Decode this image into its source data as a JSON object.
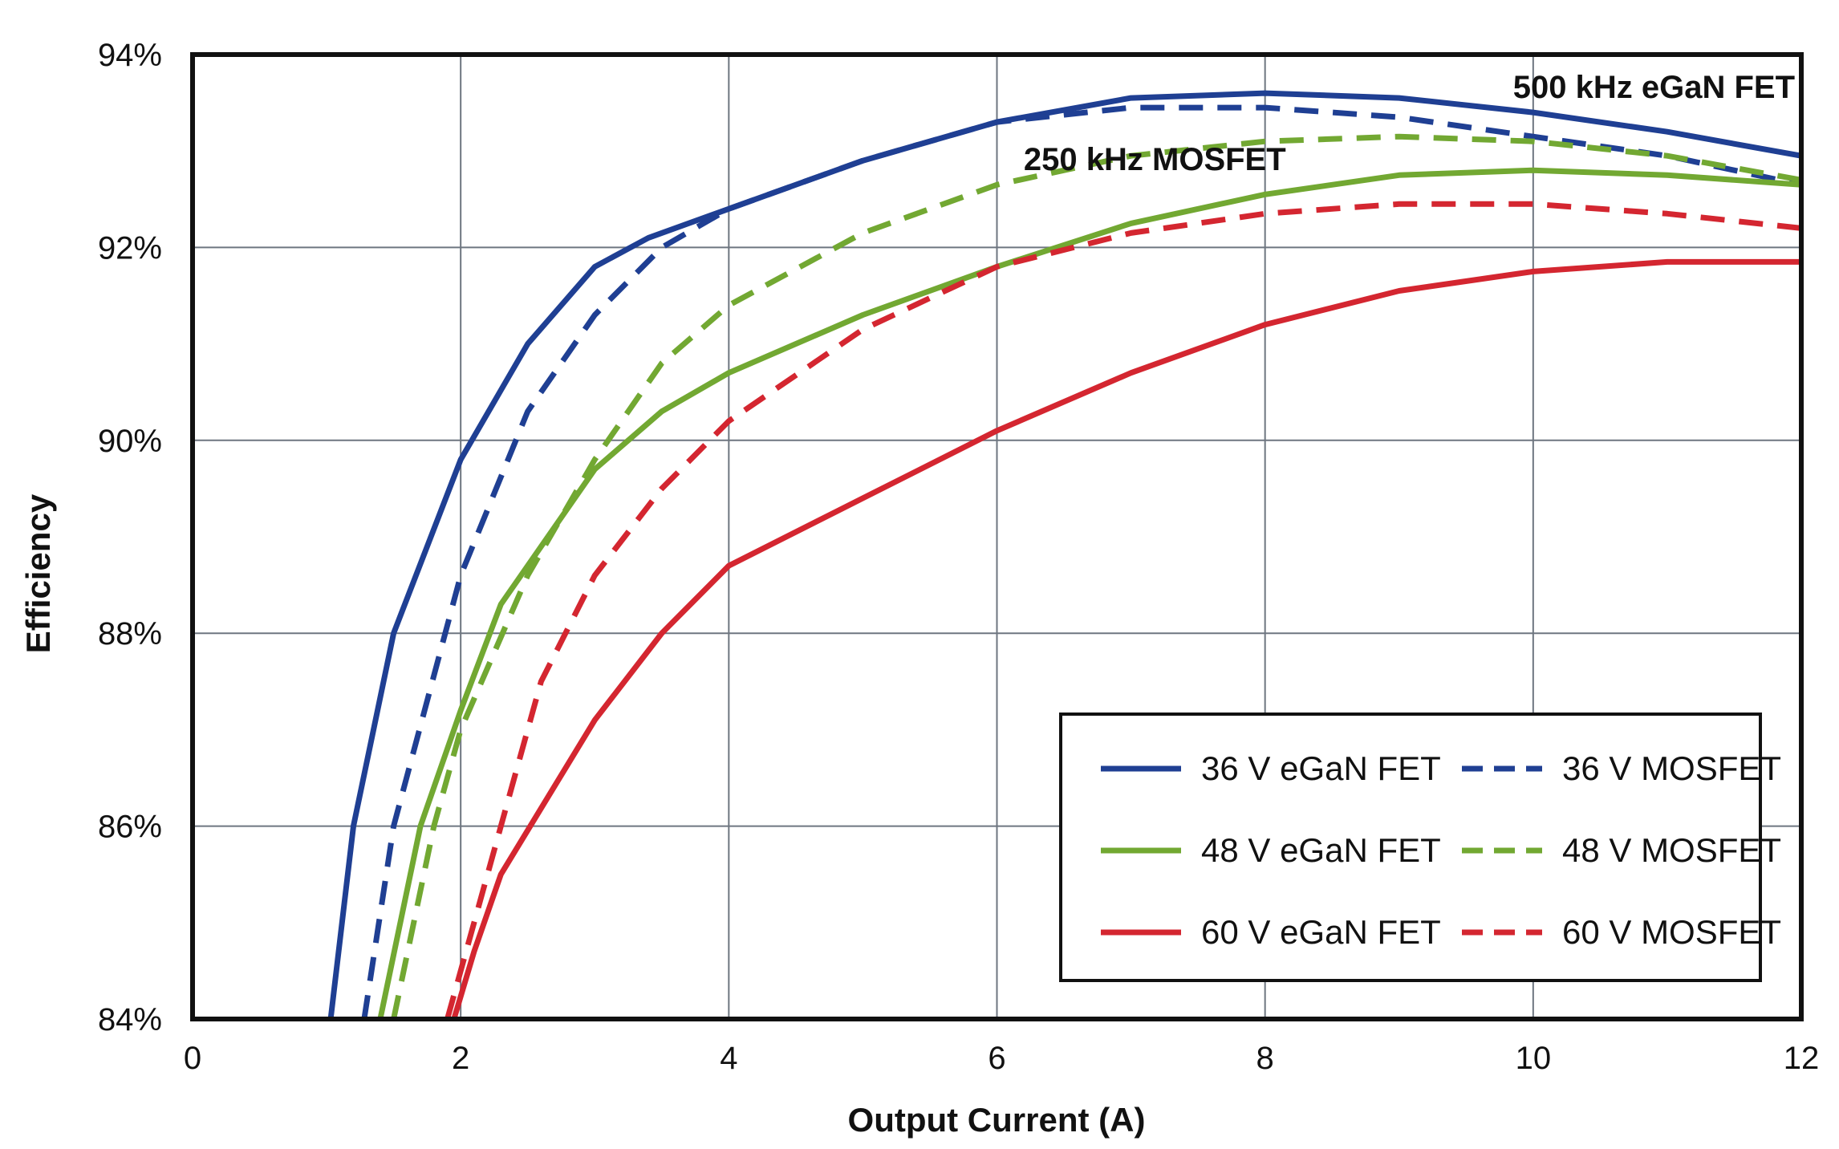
{
  "chart_data": {
    "type": "line",
    "title": "",
    "xlabel": "Output Current (A)",
    "ylabel": "Efficiency",
    "xlim": [
      0,
      12
    ],
    "ylim": [
      84,
      94
    ],
    "xticks": [
      0,
      2,
      4,
      6,
      8,
      10,
      12
    ],
    "xtick_labels": [
      "0",
      "2",
      "4",
      "6",
      "8",
      "10",
      "12"
    ],
    "yticks": [
      84,
      86,
      88,
      90,
      92,
      94
    ],
    "ytick_labels": [
      "84%",
      "86%",
      "88%",
      "90%",
      "92%",
      "94%"
    ],
    "grid": true,
    "legend_position": "bottom-right",
    "annotations": [
      {
        "text": "500 kHz eGaN FET",
        "x": 9.85,
        "y": 93.55
      },
      {
        "text": "250 kHz MOSFET",
        "x": 6.2,
        "y": 92.8
      }
    ],
    "series": [
      {
        "name": "36 V eGaN FET",
        "color": "#1f3f93",
        "dash": "solid",
        "x": [
          1.03,
          1.2,
          1.5,
          2.0,
          2.5,
          3.0,
          3.4,
          4.0,
          5.0,
          6.0,
          7.0,
          8.0,
          9.0,
          10.0,
          11.0,
          12.0
        ],
        "y": [
          84.0,
          86.0,
          88.0,
          89.8,
          91.0,
          91.8,
          92.1,
          92.4,
          92.9,
          93.3,
          93.55,
          93.6,
          93.55,
          93.4,
          93.2,
          92.95
        ]
      },
      {
        "name": "36 V MOSFET",
        "color": "#1f3f93",
        "dash": "dashed",
        "x": [
          1.28,
          1.5,
          2.0,
          2.5,
          3.0,
          3.5,
          4.0,
          5.0,
          6.0,
          7.0,
          8.0,
          9.0,
          10.0,
          11.0,
          12.0
        ],
        "y": [
          84.0,
          86.0,
          88.6,
          90.3,
          91.3,
          92.0,
          92.4,
          92.9,
          93.3,
          93.45,
          93.45,
          93.35,
          93.15,
          92.95,
          92.65
        ]
      },
      {
        "name": "48 V eGaN FET",
        "color": "#72a832",
        "dash": "solid",
        "x": [
          1.4,
          1.7,
          2.0,
          2.3,
          3.0,
          3.5,
          4.0,
          5.0,
          6.0,
          7.0,
          8.0,
          9.0,
          10.0,
          11.0,
          12.0
        ],
        "y": [
          84.0,
          86.0,
          87.2,
          88.3,
          89.7,
          90.3,
          90.7,
          91.3,
          91.8,
          92.25,
          92.55,
          92.75,
          92.8,
          92.75,
          92.65
        ]
      },
      {
        "name": "48 V MOSFET",
        "color": "#72a832",
        "dash": "dashed",
        "x": [
          1.5,
          1.8,
          2.0,
          2.5,
          3.0,
          3.5,
          4.0,
          5.0,
          6.0,
          7.0,
          8.0,
          9.0,
          10.0,
          11.0,
          12.0
        ],
        "y": [
          84.0,
          86.0,
          87.0,
          88.6,
          89.8,
          90.8,
          91.4,
          92.15,
          92.65,
          92.95,
          93.1,
          93.15,
          93.1,
          92.95,
          92.7
        ]
      },
      {
        "name": "60 V eGaN FET",
        "color": "#d42630",
        "dash": "solid",
        "x": [
          1.95,
          2.1,
          2.3,
          3.0,
          3.5,
          4.0,
          5.0,
          6.0,
          7.0,
          8.0,
          9.0,
          10.0,
          11.0,
          12.0
        ],
        "y": [
          84.0,
          84.7,
          85.5,
          87.1,
          88.0,
          88.7,
          89.4,
          90.1,
          90.7,
          91.2,
          91.55,
          91.75,
          91.85,
          91.85
        ]
      },
      {
        "name": "60 V MOSFET",
        "color": "#d42630",
        "dash": "dashed",
        "x": [
          1.9,
          2.1,
          2.3,
          2.6,
          3.0,
          3.5,
          4.0,
          5.0,
          6.0,
          7.0,
          8.0,
          9.0,
          10.0,
          11.0,
          12.0
        ],
        "y": [
          84.0,
          85.0,
          86.0,
          87.5,
          88.6,
          89.5,
          90.2,
          91.15,
          91.8,
          92.15,
          92.35,
          92.45,
          92.45,
          92.35,
          92.2
        ]
      }
    ]
  }
}
